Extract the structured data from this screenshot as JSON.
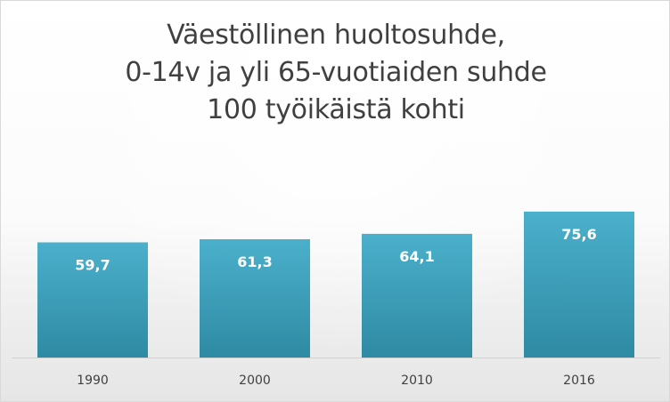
{
  "chart_data": {
    "type": "bar",
    "title_lines": [
      "Väestöllinen huoltosuhde,",
      "0-14v ja yli 65-vuotiaiden suhde",
      "100 työikäistä kohti"
    ],
    "categories": [
      "1990",
      "2000",
      "2010",
      "2016"
    ],
    "values": [
      59.7,
      61.3,
      64.1,
      75.6
    ],
    "value_labels": [
      "59,7",
      "61,3",
      "64,1",
      "75,6"
    ],
    "xlabel": "",
    "ylabel": "",
    "ylim": [
      0,
      82
    ],
    "grid": false,
    "legend": "none",
    "colors": {
      "bar_top": "#4bb0cc",
      "bar_bottom": "#2f8aa3",
      "axis": "#d0d0d0",
      "value_text": "#ffffff",
      "tick_text": "#404040",
      "title_text": "#404040"
    }
  }
}
